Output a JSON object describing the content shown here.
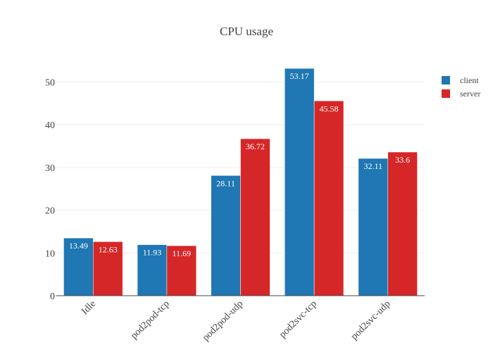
{
  "chart_data": {
    "type": "bar",
    "title": "CPU usage",
    "xlabel": "",
    "ylabel": "",
    "categories": [
      "Idle",
      "pod2pod-tcp",
      "pod2pod-udp",
      "pod2svc-tcp",
      "pod2svc-udp"
    ],
    "series": [
      {
        "name": "client",
        "color": "#1f77b4",
        "values": [
          13.49,
          11.93,
          28.11,
          53.17,
          32.11
        ]
      },
      {
        "name": "server",
        "color": "#d62728",
        "values": [
          12.63,
          11.69,
          36.72,
          45.58,
          33.6
        ]
      }
    ],
    "ylim": [
      0,
      56
    ],
    "yticks": [
      0,
      10,
      20,
      30,
      40,
      50
    ],
    "grid": true,
    "legend_position": "top-right"
  }
}
